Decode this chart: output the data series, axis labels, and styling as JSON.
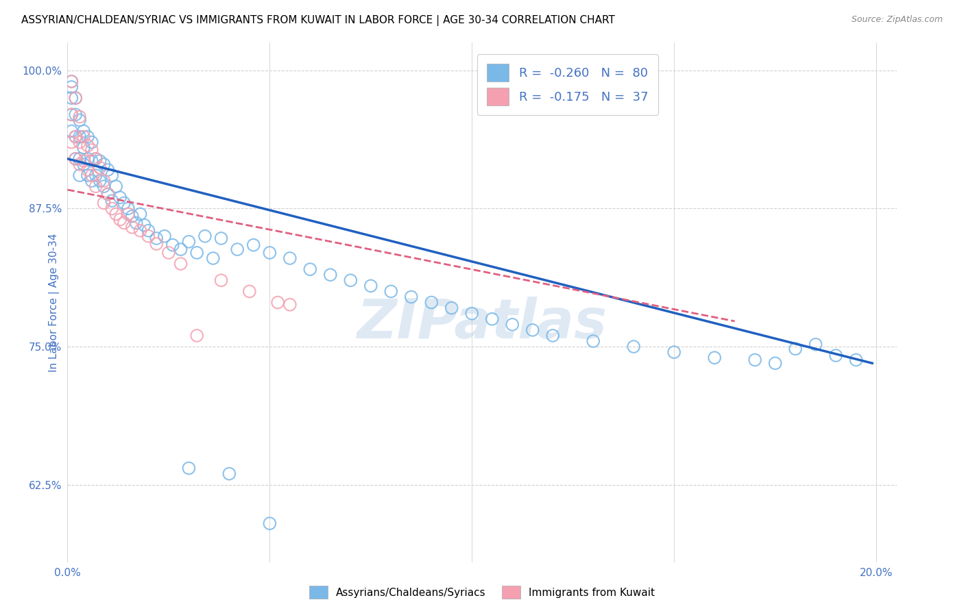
{
  "title": "ASSYRIAN/CHALDEAN/SYRIAC VS IMMIGRANTS FROM KUWAIT IN LABOR FORCE | AGE 30-34 CORRELATION CHART",
  "source_text": "Source: ZipAtlas.com",
  "ylabel_text": "In Labor Force | Age 30-34",
  "xlim": [
    0.0,
    0.205
  ],
  "ylim": [
    0.555,
    1.025
  ],
  "xticks": [
    0.0,
    0.05,
    0.1,
    0.15,
    0.2
  ],
  "xticklabels": [
    "0.0%",
    "",
    "",
    "",
    "20.0%"
  ],
  "ytick_positions": [
    0.625,
    0.75,
    0.875,
    1.0
  ],
  "yticklabels": [
    "62.5%",
    "75.0%",
    "87.5%",
    "100.0%"
  ],
  "blue_color": "#7ab8e8",
  "blue_edge_color": "#7ab8e8",
  "blue_line_color": "#2060c0",
  "pink_color": "#f4a0b0",
  "pink_edge_color": "#f4a0b0",
  "pink_line_color": "#e06080",
  "legend_R1": "-0.260",
  "legend_N1": "80",
  "legend_R2": "-0.175",
  "legend_N2": "37",
  "watermark": "ZIPatlas",
  "title_fontsize": 11,
  "axis_label_color": "#4472c4",
  "tick_label_color": "#4472c4",
  "grid_color": "#d0d0d0",
  "blue_line_x0": 0.0,
  "blue_line_x1": 0.199,
  "blue_line_y0": 0.92,
  "blue_line_y1": 0.735,
  "pink_line_x0": 0.0,
  "pink_line_x1": 0.165,
  "pink_line_y0": 0.892,
  "pink_line_y1": 0.773,
  "blue_x": [
    0.001,
    0.001,
    0.001,
    0.001,
    0.001,
    0.002,
    0.002,
    0.002,
    0.002,
    0.003,
    0.003,
    0.003,
    0.003,
    0.004,
    0.004,
    0.004,
    0.005,
    0.005,
    0.005,
    0.006,
    0.006,
    0.006,
    0.007,
    0.007,
    0.008,
    0.008,
    0.009,
    0.009,
    0.01,
    0.01,
    0.011,
    0.011,
    0.012,
    0.013,
    0.014,
    0.015,
    0.016,
    0.017,
    0.018,
    0.019,
    0.02,
    0.022,
    0.024,
    0.026,
    0.028,
    0.03,
    0.032,
    0.034,
    0.036,
    0.038,
    0.042,
    0.046,
    0.05,
    0.055,
    0.06,
    0.065,
    0.07,
    0.075,
    0.08,
    0.085,
    0.09,
    0.095,
    0.1,
    0.105,
    0.11,
    0.115,
    0.12,
    0.13,
    0.14,
    0.15,
    0.16,
    0.17,
    0.175,
    0.18,
    0.185,
    0.19,
    0.195,
    0.03,
    0.04,
    0.05
  ],
  "blue_y": [
    0.99,
    0.985,
    0.975,
    0.96,
    0.945,
    0.975,
    0.96,
    0.94,
    0.92,
    0.955,
    0.94,
    0.92,
    0.905,
    0.945,
    0.93,
    0.915,
    0.94,
    0.92,
    0.905,
    0.935,
    0.918,
    0.9,
    0.92,
    0.905,
    0.918,
    0.9,
    0.915,
    0.895,
    0.91,
    0.888,
    0.905,
    0.882,
    0.895,
    0.885,
    0.88,
    0.875,
    0.868,
    0.862,
    0.87,
    0.86,
    0.855,
    0.848,
    0.85,
    0.842,
    0.838,
    0.845,
    0.835,
    0.85,
    0.83,
    0.848,
    0.838,
    0.842,
    0.835,
    0.83,
    0.82,
    0.815,
    0.81,
    0.805,
    0.8,
    0.795,
    0.79,
    0.785,
    0.78,
    0.775,
    0.77,
    0.765,
    0.76,
    0.755,
    0.75,
    0.745,
    0.74,
    0.738,
    0.735,
    0.748,
    0.752,
    0.742,
    0.738,
    0.64,
    0.635,
    0.59
  ],
  "pink_x": [
    0.001,
    0.001,
    0.001,
    0.002,
    0.002,
    0.002,
    0.003,
    0.003,
    0.003,
    0.004,
    0.004,
    0.005,
    0.005,
    0.006,
    0.006,
    0.007,
    0.007,
    0.008,
    0.009,
    0.009,
    0.01,
    0.011,
    0.012,
    0.013,
    0.014,
    0.015,
    0.016,
    0.018,
    0.02,
    0.022,
    0.025,
    0.028,
    0.032,
    0.038,
    0.045,
    0.052,
    0.055
  ],
  "pink_y": [
    0.99,
    0.96,
    0.935,
    0.975,
    0.94,
    0.92,
    0.958,
    0.935,
    0.915,
    0.94,
    0.918,
    0.932,
    0.91,
    0.928,
    0.905,
    0.92,
    0.895,
    0.912,
    0.9,
    0.88,
    0.888,
    0.875,
    0.87,
    0.865,
    0.862,
    0.87,
    0.858,
    0.855,
    0.85,
    0.843,
    0.835,
    0.825,
    0.76,
    0.81,
    0.8,
    0.79,
    0.788
  ]
}
